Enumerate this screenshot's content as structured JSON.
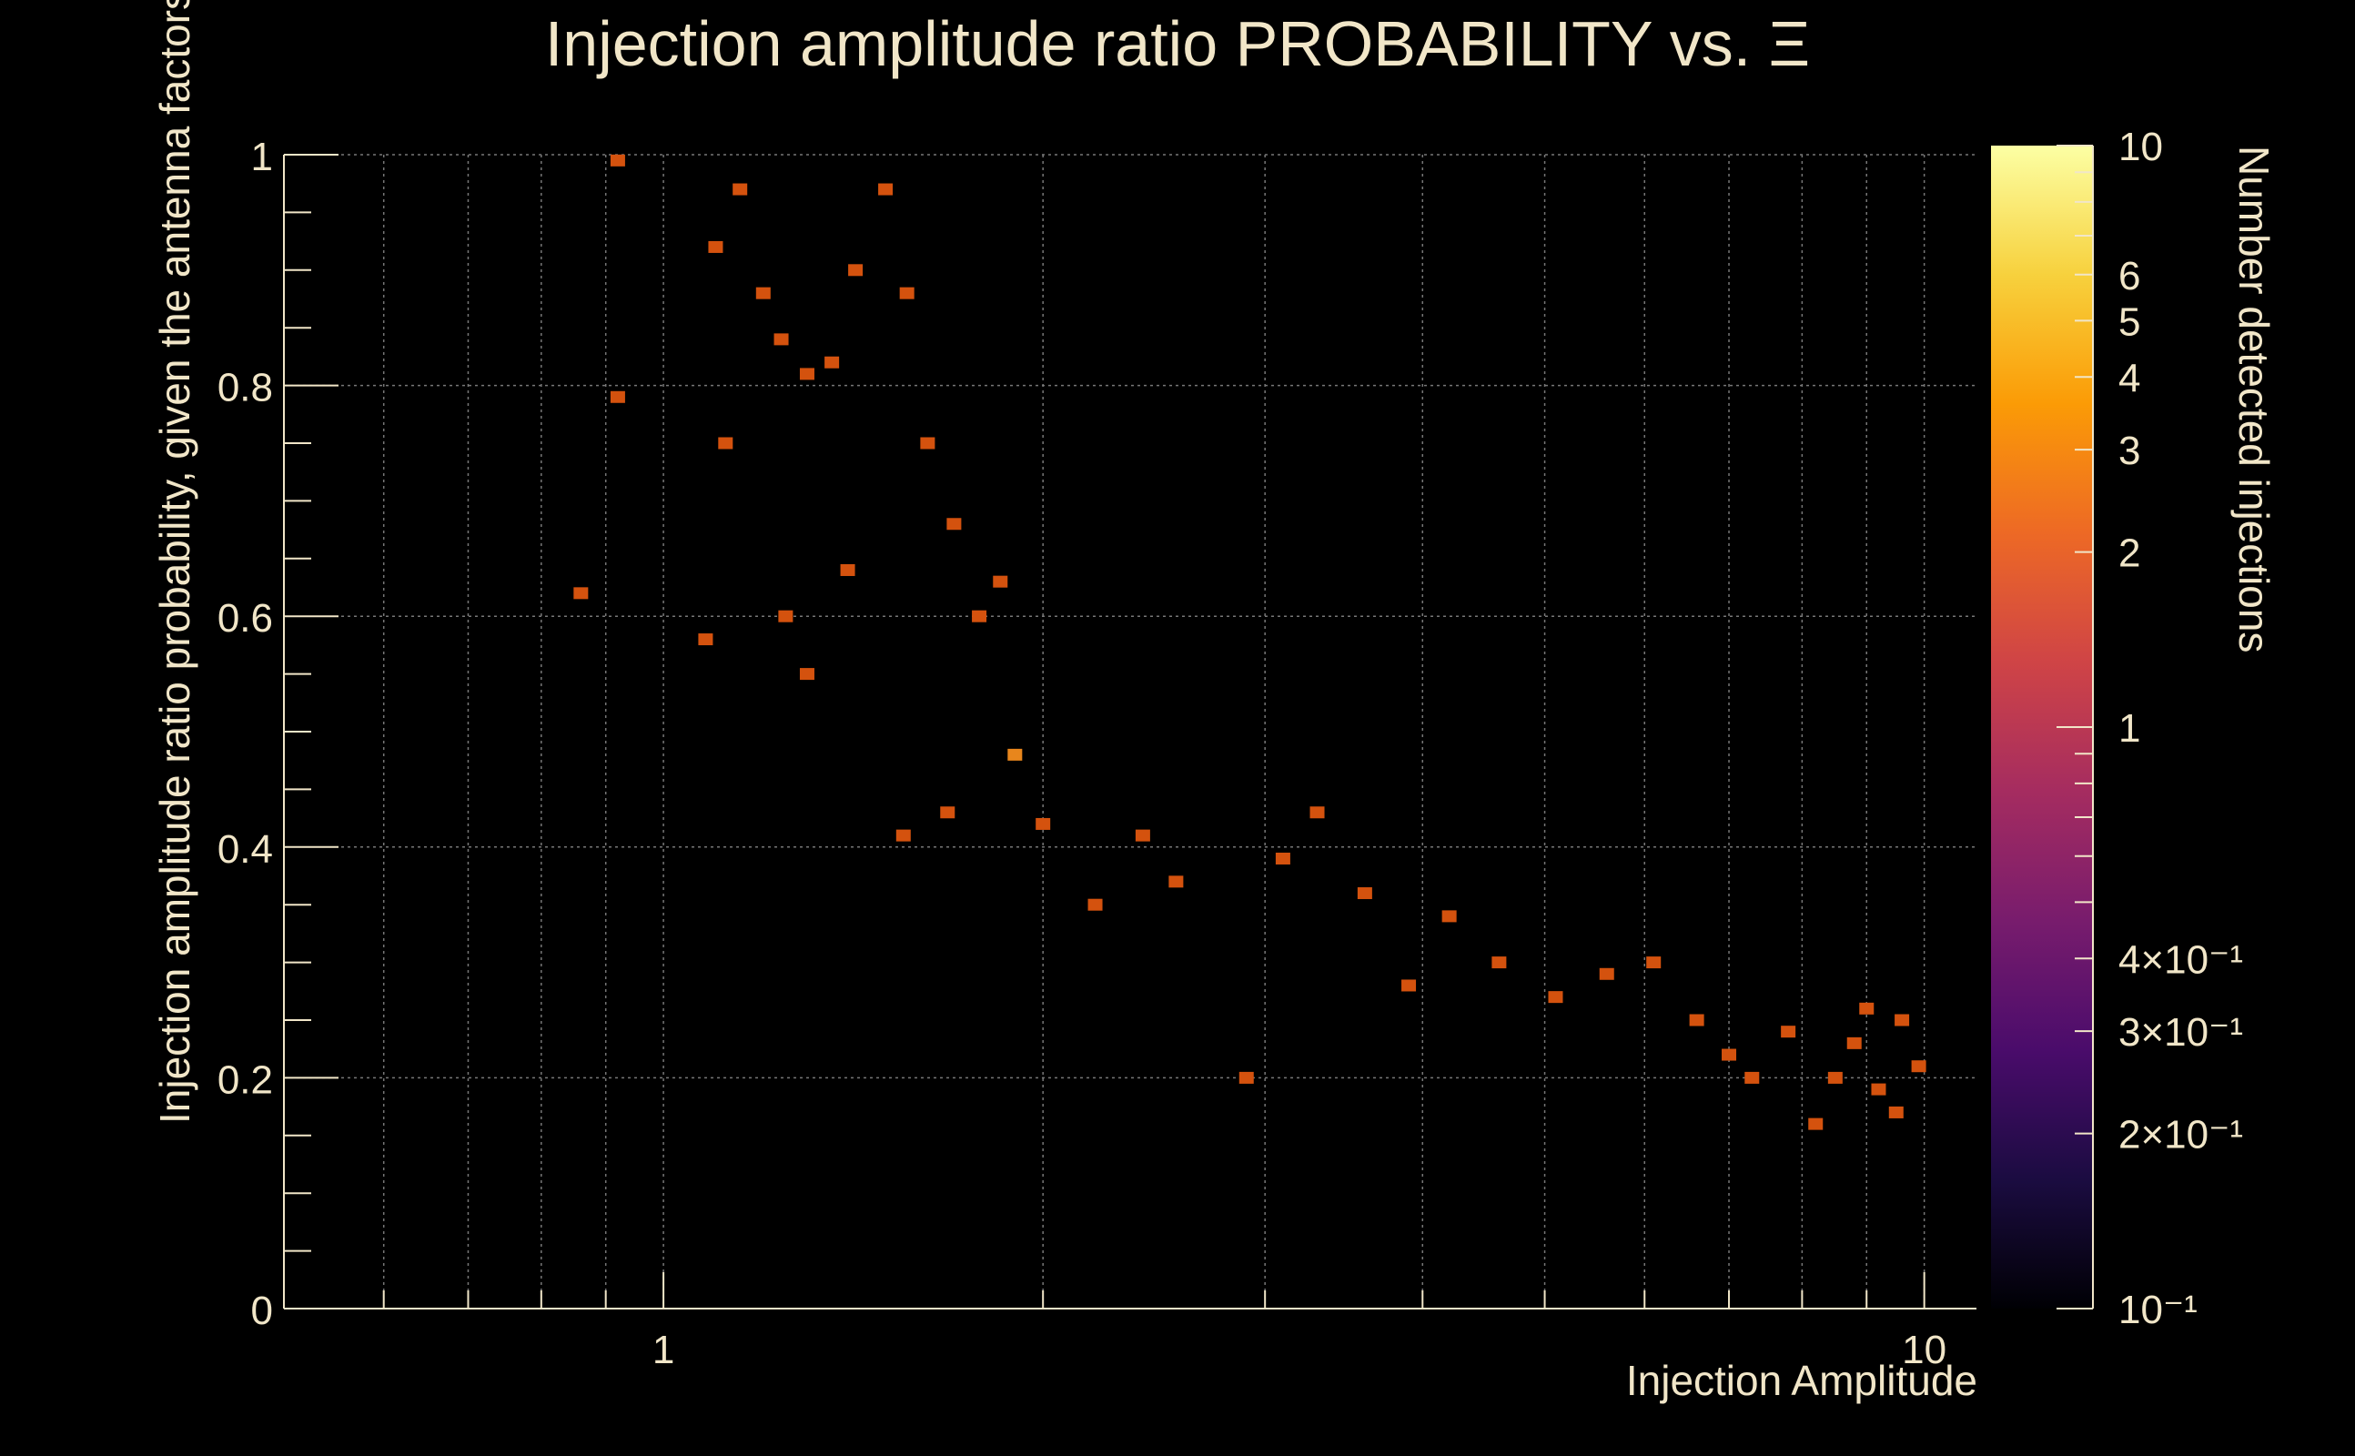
{
  "chart_data": {
    "type": "heatmap",
    "title": "Injection amplitude ratio PROBABILITY vs.  Ξ",
    "xlabel": "Injection Amplitude",
    "ylabel": "Injection amplitude ratio probability, given the antenna factors",
    "zlabel": "Number detected injections",
    "x_scale": "log",
    "xlim": [
      0.5,
      11
    ],
    "ylim": [
      0,
      1
    ],
    "zlim": [
      0.1,
      10
    ],
    "z_scale": "log",
    "x_ticks": [
      {
        "value": 1,
        "label": "1"
      },
      {
        "value": 10,
        "label": "10"
      }
    ],
    "y_ticks": [
      {
        "value": 0,
        "label": "0"
      },
      {
        "value": 0.2,
        "label": "0.2"
      },
      {
        "value": 0.4,
        "label": "0.4"
      },
      {
        "value": 0.6,
        "label": "0.6"
      },
      {
        "value": 0.8,
        "label": "0.8"
      },
      {
        "value": 1,
        "label": "1"
      }
    ],
    "z_ticks": [
      {
        "value": 10,
        "label": "10"
      },
      {
        "value": 6,
        "label": "6"
      },
      {
        "value": 5,
        "label": "5"
      },
      {
        "value": 4,
        "label": "4"
      },
      {
        "value": 3,
        "label": "3"
      },
      {
        "value": 2,
        "label": "2"
      },
      {
        "value": 1,
        "label": "1"
      },
      {
        "value": 0.4,
        "label": "4×10⁻¹"
      },
      {
        "value": 0.3,
        "label": "3×10⁻¹"
      },
      {
        "value": 0.2,
        "label": "2×10⁻¹"
      },
      {
        "value": 0.1,
        "label": "10⁻¹"
      }
    ],
    "grid": true,
    "colors": {
      "background": "#000000",
      "text": "#f1e6c8",
      "count_1": "#d4520e",
      "count_2": "#e8861c",
      "count_3": "#eba534",
      "count_4": "#efc560"
    },
    "colormap": [
      "#000004",
      "#1b0c41",
      "#4a0c6b",
      "#781c6d",
      "#a52c60",
      "#cf4446",
      "#ed6925",
      "#fb9b06",
      "#f7d13d",
      "#fcffa4"
    ],
    "cells": [
      [
        0.92,
        0.995,
        1
      ],
      [
        0.92,
        0.79,
        1
      ],
      [
        0.86,
        0.62,
        1
      ],
      [
        1.08,
        0.58,
        1
      ],
      [
        1.12,
        0.75,
        1
      ],
      [
        1.1,
        0.92,
        1
      ],
      [
        1.15,
        0.97,
        1
      ],
      [
        1.2,
        0.88,
        1
      ],
      [
        1.24,
        0.84,
        1
      ],
      [
        1.3,
        0.81,
        1
      ],
      [
        1.36,
        0.82,
        1
      ],
      [
        1.42,
        0.9,
        1
      ],
      [
        1.5,
        0.97,
        1
      ],
      [
        1.56,
        0.88,
        1
      ],
      [
        1.62,
        0.75,
        1
      ],
      [
        1.7,
        0.68,
        1
      ],
      [
        1.78,
        0.6,
        1
      ],
      [
        1.85,
        0.63,
        1
      ],
      [
        1.4,
        0.64,
        1
      ],
      [
        1.25,
        0.6,
        1
      ],
      [
        1.3,
        0.55,
        1
      ],
      [
        1.55,
        0.41,
        1
      ],
      [
        1.68,
        0.43,
        1
      ],
      [
        1.9,
        0.48,
        2
      ],
      [
        2.0,
        0.42,
        1
      ],
      [
        2.2,
        0.35,
        1
      ],
      [
        2.4,
        0.41,
        1
      ],
      [
        2.55,
        0.37,
        1
      ],
      [
        2.9,
        0.2,
        1
      ],
      [
        3.1,
        0.39,
        1
      ],
      [
        3.3,
        0.43,
        1
      ],
      [
        3.6,
        0.36,
        1
      ],
      [
        3.9,
        0.28,
        1
      ],
      [
        4.2,
        0.34,
        1
      ],
      [
        4.6,
        0.3,
        1
      ],
      [
        5.1,
        0.27,
        1
      ],
      [
        5.6,
        0.29,
        1
      ],
      [
        6.1,
        0.3,
        1
      ],
      [
        6.6,
        0.25,
        1
      ],
      [
        7.0,
        0.22,
        1
      ],
      [
        7.3,
        0.2,
        1
      ],
      [
        7.8,
        0.24,
        1
      ],
      [
        8.2,
        0.16,
        1
      ],
      [
        8.5,
        0.2,
        1
      ],
      [
        8.8,
        0.23,
        1
      ],
      [
        9.2,
        0.19,
        1
      ],
      [
        9.5,
        0.17,
        1
      ],
      [
        9.9,
        0.21,
        1
      ],
      [
        9.6,
        0.25,
        1
      ],
      [
        9.0,
        0.26,
        1
      ]
    ]
  }
}
